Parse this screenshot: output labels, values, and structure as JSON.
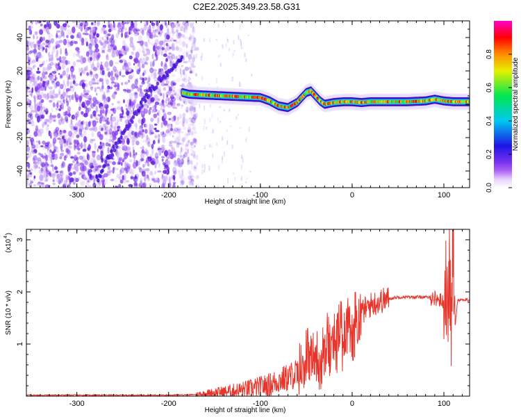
{
  "title": "C2E2.2025.349.23.58.G31",
  "chart_data": [
    {
      "type": "heatmap",
      "title": "C2E2.2025.349.23.58.G31",
      "xlabel": "Height of straight line (km)",
      "ylabel": "Frequency (Hz)",
      "xlim": [
        -355,
        128
      ],
      "ylim": [
        -50,
        50
      ],
      "x_ticks": [
        -300,
        -200,
        -100,
        0,
        100
      ],
      "x_tick_labels": [
        "-300",
        "-200",
        "-100",
        "0",
        "100"
      ],
      "y_ticks": [
        -40,
        -20,
        0,
        20,
        40
      ],
      "y_tick_labels": [
        "-40",
        "-20",
        "0",
        "20",
        "40"
      ],
      "noise_region_x": [
        -355,
        -178
      ],
      "signal_track": {
        "x": [
          -185,
          -178,
          -160,
          -140,
          -120,
          -100,
          -90,
          -80,
          -70,
          -60,
          -50,
          -45,
          -40,
          -35,
          -30,
          -25,
          -20,
          -10,
          0,
          10,
          20,
          40,
          60,
          80,
          90,
          100,
          110,
          128
        ],
        "y": [
          7,
          6,
          5.5,
          5,
          4.5,
          4,
          2,
          -1,
          -2,
          1,
          7,
          8,
          5,
          2,
          0,
          0.5,
          1,
          1.5,
          1.5,
          1,
          1.5,
          1.5,
          1.5,
          2,
          3,
          2,
          1.5,
          1.5
        ]
      },
      "diagonal_track": {
        "x": [
          -278,
          -265,
          -250,
          -235,
          -220,
          -205,
          -195,
          -185
        ],
        "y": [
          -45,
          -32,
          -18,
          -5,
          8,
          17,
          22,
          27
        ]
      },
      "colorbar": {
        "label": "Normalized spectral amplitude",
        "ticks": [
          0.0,
          0.2,
          0.4,
          0.6,
          0.8
        ],
        "tick_labels": [
          "0.0",
          "0.2",
          "0.4",
          "0.6",
          "0.8"
        ],
        "range": [
          0,
          1
        ]
      }
    },
    {
      "type": "line",
      "title": "",
      "xlabel": "Height of straight line (km)",
      "ylabel": "SNR (10 * v/v)",
      "y_multiplier": "(x10",
      "y_multiplier_exp": "4",
      "y_multiplier_close": ")",
      "xlim": [
        -355,
        128
      ],
      "ylim": [
        0,
        3.2
      ],
      "x_ticks": [
        -300,
        -200,
        -100,
        0,
        100
      ],
      "x_tick_labels": [
        "-300",
        "-200",
        "-100",
        "0",
        "100"
      ],
      "y_ticks": [
        1,
        2,
        3
      ],
      "y_tick_labels": [
        "1",
        "2",
        "3"
      ],
      "series": [
        {
          "name": "SNR",
          "color": "#e8352b",
          "x": [
            -355,
            -300,
            -250,
            -200,
            -170,
            -160,
            -150,
            -140,
            -130,
            -120,
            -110,
            -100,
            -90,
            -80,
            -70,
            -60,
            -55,
            -50,
            -45,
            -40,
            -35,
            -30,
            -25,
            -20,
            -15,
            -10,
            -5,
            0,
            5,
            10,
            20,
            30,
            40,
            50,
            60,
            70,
            80,
            90,
            95,
            100,
            102,
            104,
            106,
            108,
            110,
            112,
            115,
            120,
            128
          ],
          "y": [
            0.02,
            0.02,
            0.02,
            0.02,
            0.03,
            0.05,
            0.07,
            0.08,
            0.1,
            0.12,
            0.15,
            0.18,
            0.22,
            0.3,
            0.35,
            0.45,
            0.6,
            0.8,
            0.7,
            0.9,
            0.6,
            1.0,
            1.2,
            1.1,
            1.3,
            1.25,
            1.35,
            1.45,
            1.5,
            1.6,
            1.75,
            1.82,
            1.87,
            1.9,
            1.9,
            1.9,
            1.9,
            1.88,
            1.85,
            1.8,
            2.3,
            1.4,
            2.5,
            1.2,
            3.1,
            1.3,
            1.85,
            1.85,
            1.84
          ]
        }
      ]
    }
  ],
  "colors": {
    "background": "#ffffff",
    "frame": "#000000",
    "line": "#e8352b",
    "noise": "#7a2be0"
  }
}
